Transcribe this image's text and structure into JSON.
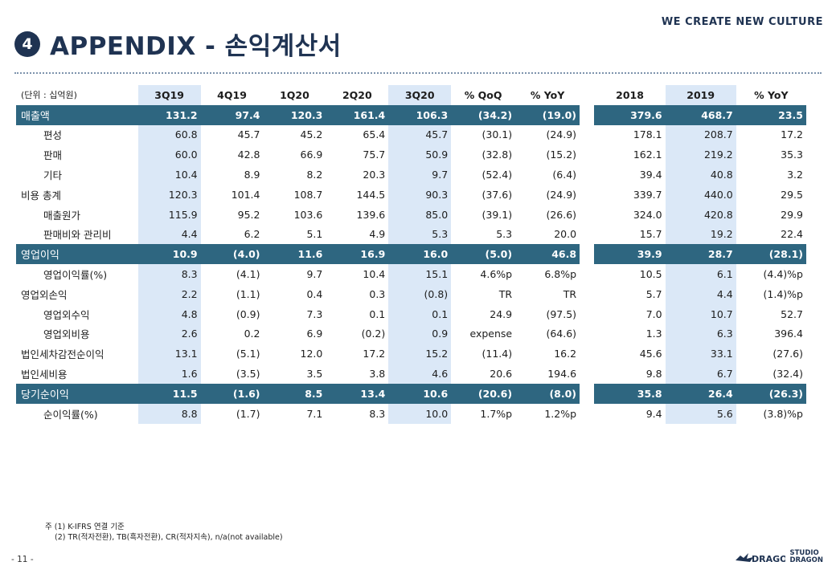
{
  "header": {
    "tagline": "WE CREATE NEW CULTURE",
    "section_number": "4",
    "title": "APPENDIX - 손익계산서"
  },
  "table": {
    "unit_label": "(단위 : 십억원)",
    "columns": [
      "3Q19",
      "4Q19",
      "1Q20",
      "2Q20",
      "3Q20",
      "% QoQ",
      "% YoY",
      "2018",
      "2019",
      "% YoY"
    ],
    "rows": [
      {
        "label": "매출액",
        "style": "key",
        "values": [
          "131.2",
          "97.4",
          "120.3",
          "161.4",
          "106.3",
          "(34.2)",
          "(19.0)",
          "379.6",
          "468.7",
          "23.5"
        ]
      },
      {
        "label": "편성",
        "style": "sub",
        "values": [
          "60.8",
          "45.7",
          "45.2",
          "65.4",
          "45.7",
          "(30.1)",
          "(24.9)",
          "178.1",
          "208.7",
          "17.2"
        ]
      },
      {
        "label": "판매",
        "style": "sub",
        "values": [
          "60.0",
          "42.8",
          "66.9",
          "75.7",
          "50.9",
          "(32.8)",
          "(15.2)",
          "162.1",
          "219.2",
          "35.3"
        ]
      },
      {
        "label": "기타",
        "style": "sub",
        "values": [
          "10.4",
          "8.9",
          "8.2",
          "20.3",
          "9.7",
          "(52.4)",
          "(6.4)",
          "39.4",
          "40.8",
          "3.2"
        ]
      },
      {
        "label": "비용 총계",
        "style": "main",
        "values": [
          "120.3",
          "101.4",
          "108.7",
          "144.5",
          "90.3",
          "(37.6)",
          "(24.9)",
          "339.7",
          "440.0",
          "29.5"
        ]
      },
      {
        "label": "매출원가",
        "style": "sub",
        "values": [
          "115.9",
          "95.2",
          "103.6",
          "139.6",
          "85.0",
          "(39.1)",
          "(26.6)",
          "324.0",
          "420.8",
          "29.9"
        ]
      },
      {
        "label": "판매비와 관리비",
        "style": "sub",
        "values": [
          "4.4",
          "6.2",
          "5.1",
          "4.9",
          "5.3",
          "5.3",
          "20.0",
          "15.7",
          "19.2",
          "22.4"
        ]
      },
      {
        "label": "영업이익",
        "style": "key",
        "values": [
          "10.9",
          "(4.0)",
          "11.6",
          "16.9",
          "16.0",
          "(5.0)",
          "46.8",
          "39.9",
          "28.7",
          "(28.1)"
        ]
      },
      {
        "label": "영업이익률(%)",
        "style": "sub",
        "values": [
          "8.3",
          "(4.1)",
          "9.7",
          "10.4",
          "15.1",
          "4.6%p",
          "6.8%p",
          "10.5",
          "6.1",
          "(4.4)%p"
        ]
      },
      {
        "label": "영업외손익",
        "style": "main",
        "values": [
          "2.2",
          "(1.1)",
          "0.4",
          "0.3",
          "(0.8)",
          "TR",
          "TR",
          "5.7",
          "4.4",
          "(1.4)%p"
        ]
      },
      {
        "label": "영업외수익",
        "style": "sub",
        "values": [
          "4.8",
          "(0.9)",
          "7.3",
          "0.1",
          "0.1",
          "24.9",
          "(97.5)",
          "7.0",
          "10.7",
          "52.7"
        ]
      },
      {
        "label": "영업외비용",
        "style": "sub",
        "values": [
          "2.6",
          "0.2",
          "6.9",
          "(0.2)",
          "0.9",
          "expense",
          "(64.6)",
          "1.3",
          "6.3",
          "396.4"
        ]
      },
      {
        "label": "법인세차감전순이익",
        "style": "main",
        "values": [
          "13.1",
          "(5.1)",
          "12.0",
          "17.2",
          "15.2",
          "(11.4)",
          "16.2",
          "45.6",
          "33.1",
          "(27.6)"
        ]
      },
      {
        "label": "법인세비용",
        "style": "main",
        "values": [
          "1.6",
          "(3.5)",
          "3.5",
          "3.8",
          "4.6",
          "20.6",
          "194.6",
          "9.8",
          "6.7",
          "(32.4)"
        ]
      },
      {
        "label": "당기순이익",
        "style": "key",
        "values": [
          "11.5",
          "(1.6)",
          "8.5",
          "13.4",
          "10.6",
          "(20.6)",
          "(8.0)",
          "35.8",
          "26.4",
          "(26.3)"
        ]
      },
      {
        "label": "순이익률(%)",
        "style": "sub",
        "values": [
          "8.8",
          "(1.7)",
          "7.1",
          "8.3",
          "10.0",
          "1.7%p",
          "1.2%p",
          "9.4",
          "5.6",
          "(3.8)%p"
        ]
      }
    ]
  },
  "notes": {
    "line1": "주 (1) K-IFRS 연결 기준",
    "line2": "(2) TR(적자전환), TB(흑자전환), CR(적자지속), n/a(not available)"
  },
  "footer": {
    "page_number": "- 11 -",
    "logo_text_line1": "STUDIO",
    "logo_text_line2": "DRAGON"
  },
  "colors": {
    "brand_navy": "#1f3352",
    "key_row_teal": "#2e6680",
    "highlight_column": "#dbe8f7"
  }
}
